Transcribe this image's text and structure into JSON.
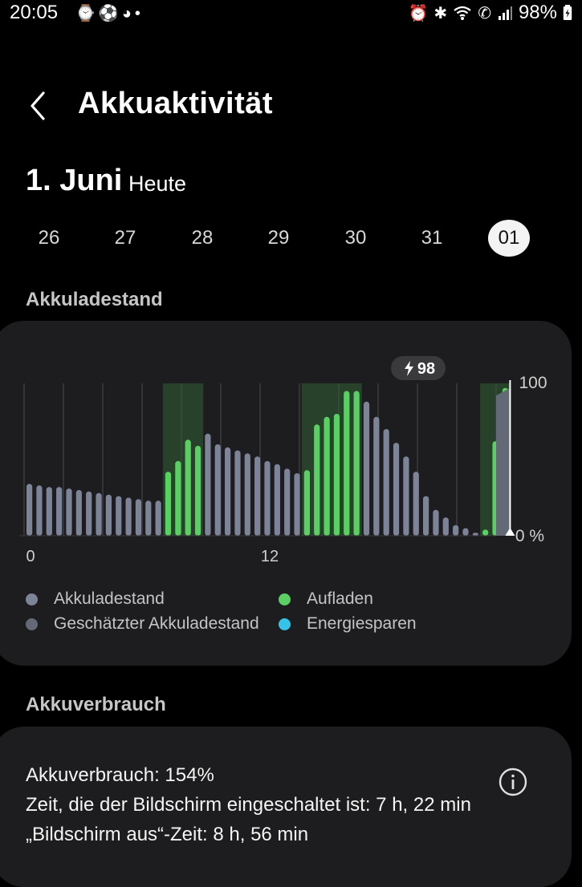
{
  "status_bar": {
    "time": "20:05",
    "battery": "98%"
  },
  "header": {
    "title": "Akkuaktivität"
  },
  "date": {
    "main": "1. Juni",
    "sub": "Heute"
  },
  "days": [
    "26",
    "27",
    "28",
    "29",
    "30",
    "31",
    "01"
  ],
  "selected_day": "01",
  "sections": {
    "battery_level": "Akkuladestand",
    "battery_usage": "Akkuverbrauch"
  },
  "chart_data": {
    "type": "bar",
    "x_ticks": [
      "0",
      "12"
    ],
    "y_ticks": [
      "100",
      "0 %"
    ],
    "ylim": [
      0,
      100
    ],
    "current_badge": "98",
    "values": [
      34,
      33,
      32,
      32,
      31,
      30,
      29,
      28,
      27,
      26,
      25,
      24,
      23,
      23,
      42,
      49,
      63,
      59,
      67,
      60,
      58,
      56,
      54,
      52,
      49,
      47,
      44,
      41,
      43,
      73,
      78,
      80,
      95,
      95,
      88,
      78,
      70,
      61,
      52,
      42,
      26,
      17,
      12,
      7,
      5,
      2,
      4,
      62,
      97
    ],
    "charging": [
      false,
      false,
      false,
      false,
      false,
      false,
      false,
      false,
      false,
      false,
      false,
      false,
      false,
      false,
      true,
      true,
      true,
      true,
      false,
      false,
      false,
      false,
      false,
      false,
      false,
      false,
      false,
      false,
      true,
      true,
      true,
      true,
      true,
      true,
      false,
      false,
      false,
      false,
      false,
      false,
      false,
      false,
      false,
      false,
      false,
      false,
      true,
      true,
      true
    ],
    "estimated": {
      "start": 97,
      "end": 92
    },
    "colors": {
      "level": "#7d8497",
      "charging": "#5ad063",
      "estimated": "#646a75",
      "power_saving": "#35c4e8"
    },
    "legend": [
      {
        "label": "Akkuladestand",
        "color": "#7d8497"
      },
      {
        "label": "Aufladen",
        "color": "#5ad063"
      },
      {
        "label": "Geschätzter Akkuladestand",
        "color": "#646a75"
      },
      {
        "label": "Energiesparen",
        "color": "#35c4e8"
      }
    ]
  },
  "usage": {
    "line1": "Akkuverbrauch: 154%",
    "line2": "Zeit, die der Bildschirm eingeschaltet ist: 7 h, 22 min",
    "line3": "„Bildschirm aus“-Zeit: 8 h, 56 min"
  }
}
